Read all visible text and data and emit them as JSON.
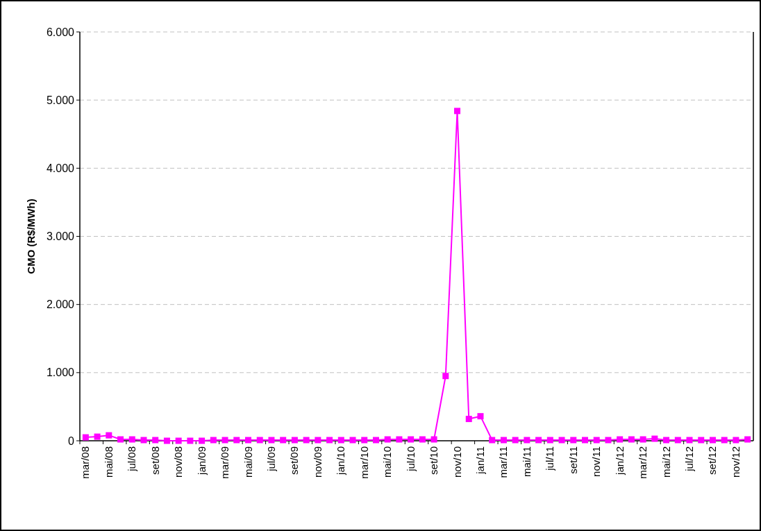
{
  "chart_data": {
    "type": "line",
    "ylabel": "CMO (R$/MWh)",
    "categories": [
      "mar/08",
      null,
      "mai/08",
      null,
      "jul/08",
      null,
      "set/08",
      null,
      "nov/08",
      null,
      "jan/09",
      null,
      "mar/09",
      null,
      "mai/09",
      null,
      "jul/09",
      null,
      "set/09",
      null,
      "nov/09",
      null,
      "jan/10",
      null,
      "mar/10",
      null,
      "mai/10",
      null,
      "jul/10",
      null,
      "set/10",
      null,
      "nov/10",
      null,
      "jan/11",
      null,
      "mar/11",
      null,
      "mai/11",
      null,
      "jul/11",
      null,
      "set/11",
      null,
      "nov/11",
      null,
      "jan/12",
      null,
      "mar/12",
      null,
      "mai/12",
      null,
      "jul/12",
      null,
      "set/12",
      null,
      "nov/12",
      null
    ],
    "series": [
      {
        "color": "#ff00ff",
        "values": [
          50,
          60,
          80,
          20,
          20,
          10,
          10,
          0,
          0,
          0,
          0,
          10,
          10,
          10,
          10,
          10,
          10,
          10,
          10,
          10,
          10,
          10,
          10,
          10,
          10,
          10,
          20,
          20,
          20,
          20,
          20,
          950,
          4840,
          320,
          360,
          10,
          10,
          10,
          10,
          10,
          10,
          10,
          10,
          10,
          10,
          10,
          20,
          20,
          20,
          30,
          10,
          10,
          10,
          10,
          10,
          10,
          10,
          20
        ]
      }
    ],
    "ylim": [
      0,
      6000
    ],
    "yticks": [
      {
        "value": 0,
        "label": "0"
      },
      {
        "value": 1000,
        "label": "1.000"
      },
      {
        "value": 2000,
        "label": "2.000"
      },
      {
        "value": 3000,
        "label": "3.000"
      },
      {
        "value": 4000,
        "label": "4.000"
      },
      {
        "value": 5000,
        "label": "5.000"
      },
      {
        "value": 6000,
        "label": "6.000"
      }
    ],
    "grid": "y",
    "marker": "square",
    "line_style": "solid"
  }
}
